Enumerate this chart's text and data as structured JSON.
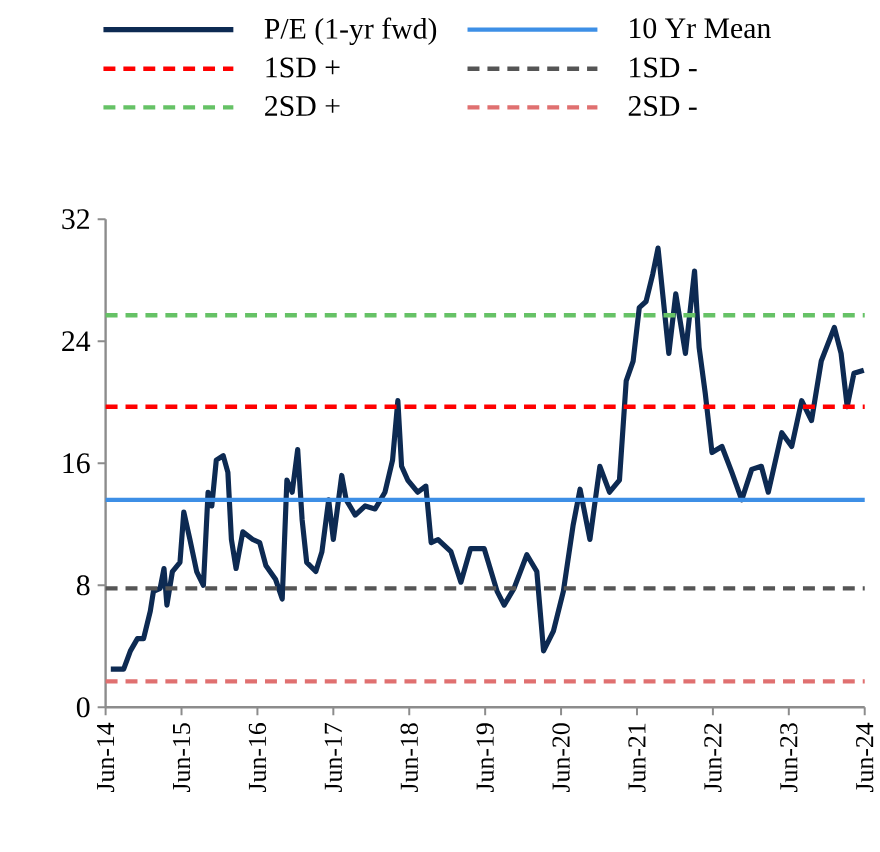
{
  "chart_data": {
    "type": "line",
    "xlim": [
      "2014-06-01",
      "2024-06-01"
    ],
    "xticks": [
      {
        "value": "2014-06-01",
        "label": "Jun-14"
      },
      {
        "value": "2015-06-01",
        "label": "Jun-15"
      },
      {
        "value": "2016-06-01",
        "label": "Jun-16"
      },
      {
        "value": "2017-06-01",
        "label": "Jun-17"
      },
      {
        "value": "2018-06-01",
        "label": "Jun-18"
      },
      {
        "value": "2019-06-01",
        "label": "Jun-19"
      },
      {
        "value": "2020-06-01",
        "label": "Jun-20"
      },
      {
        "value": "2021-06-01",
        "label": "Jun-21"
      },
      {
        "value": "2022-06-01",
        "label": "Jun-22"
      },
      {
        "value": "2023-06-01",
        "label": "Jun-23"
      },
      {
        "value": "2024-06-01",
        "label": "Jun-24"
      }
    ],
    "ylim": [
      0,
      32
    ],
    "yticks": [
      0,
      8,
      16,
      24,
      32
    ],
    "grid": false,
    "legend": "top",
    "marker": "none",
    "series": [
      {
        "name": "P/E (1-yr fwd)",
        "color": "#0d2a52",
        "line_style": "solid",
        "x": [
          "2014-06-26",
          "2014-08-27",
          "2014-09-29",
          "2014-11-02",
          "2014-12-01",
          "2015-01-03",
          "2015-01-18",
          "2015-02-20",
          "2015-03-08",
          "2015-03-22",
          "2015-04-18",
          "2015-05-24",
          "2015-06-12",
          "2015-07-11",
          "2015-08-13",
          "2015-09-15",
          "2015-10-07",
          "2015-10-25",
          "2015-11-16",
          "2015-12-19",
          "2016-01-11",
          "2016-01-28",
          "2016-02-20",
          "2016-03-22",
          "2016-05-09",
          "2016-06-12",
          "2016-07-11",
          "2016-08-27",
          "2016-09-29",
          "2016-10-21",
          "2016-11-16",
          "2016-12-12",
          "2017-01-03",
          "2017-01-25",
          "2017-03-08",
          "2017-04-07",
          "2017-05-09",
          "2017-06-01",
          "2017-07-11",
          "2017-08-02",
          "2017-09-15",
          "2017-11-02",
          "2017-12-19",
          "2018-02-06",
          "2018-03-12",
          "2018-04-07",
          "2018-04-25",
          "2018-05-24",
          "2018-07-11",
          "2018-08-20",
          "2018-09-15",
          "2018-10-18",
          "2018-12-19",
          "2019-02-06",
          "2019-03-22",
          "2019-05-27",
          "2019-07-28",
          "2019-09-01",
          "2019-10-18",
          "2019-12-19",
          "2020-02-06",
          "2020-03-08",
          "2020-04-25",
          "2020-06-12",
          "2020-07-28",
          "2020-09-01",
          "2020-10-18",
          "2020-12-05",
          "2021-01-21",
          "2021-03-08",
          "2021-04-10",
          "2021-05-13",
          "2021-06-12",
          "2021-07-14",
          "2021-08-16",
          "2021-09-11",
          "2021-10-03",
          "2021-11-02",
          "2021-12-05",
          "2022-01-21",
          "2022-03-04",
          "2022-03-26",
          "2022-04-25",
          "2022-05-27",
          "2022-07-14",
          "2022-09-01",
          "2022-10-18",
          "2022-12-05",
          "2023-01-21",
          "2023-02-24",
          "2023-04-28",
          "2023-06-15",
          "2023-08-02",
          "2023-09-19",
          "2023-11-05",
          "2024-01-07",
          "2024-02-09",
          "2024-03-08",
          "2024-04-10",
          "2024-05-27"
        ],
        "values": [
          2.5,
          2.5,
          3.7,
          4.5,
          4.5,
          6.3,
          7.6,
          7.8,
          9.1,
          6.7,
          8.9,
          9.5,
          12.8,
          11.0,
          8.9,
          8.0,
          14.1,
          13.2,
          16.2,
          16.5,
          15.4,
          11.0,
          9.1,
          11.5,
          11.0,
          10.8,
          9.3,
          8.4,
          7.1,
          14.9,
          14.1,
          16.9,
          12.3,
          9.5,
          8.9,
          10.2,
          13.6,
          11.0,
          15.2,
          13.6,
          12.6,
          13.2,
          13.0,
          14.1,
          16.2,
          20.1,
          15.8,
          14.9,
          14.1,
          14.5,
          10.8,
          11.0,
          10.2,
          8.2,
          10.4,
          10.4,
          7.6,
          6.7,
          7.8,
          10.0,
          8.9,
          3.7,
          5.0,
          7.6,
          11.9,
          14.3,
          11.0,
          15.8,
          14.1,
          14.9,
          21.4,
          22.7,
          26.2,
          26.6,
          28.4,
          30.1,
          27.1,
          23.2,
          27.1,
          23.2,
          28.6,
          23.6,
          20.6,
          16.7,
          17.1,
          15.4,
          13.6,
          15.6,
          15.8,
          14.1,
          18.0,
          17.1,
          20.1,
          18.8,
          22.7,
          24.9,
          23.2,
          19.7,
          21.9,
          22.1
        ]
      },
      {
        "name": "10 Yr Mean",
        "color": "#3d8fe6",
        "line_style": "solid",
        "x": [
          "2014-06-01",
          "2024-06-01"
        ],
        "values": [
          13.6,
          13.6
        ]
      },
      {
        "name": "1SD +",
        "color": "#ff0000",
        "line_style": "dashed",
        "x": [
          "2014-06-01",
          "2024-06-01"
        ],
        "values": [
          19.7,
          19.7
        ]
      },
      {
        "name": "1SD -",
        "color": "#555555",
        "line_style": "dashed",
        "x": [
          "2014-06-01",
          "2024-06-01"
        ],
        "values": [
          7.8,
          7.8
        ]
      },
      {
        "name": "2SD +",
        "color": "#66c266",
        "line_style": "dashed",
        "x": [
          "2014-06-01",
          "2024-06-01"
        ],
        "values": [
          25.7,
          25.7
        ]
      },
      {
        "name": "2SD -",
        "color": "#e07070",
        "line_style": "dashed",
        "x": [
          "2014-06-01",
          "2024-06-01"
        ],
        "values": [
          1.7,
          1.7
        ]
      }
    ]
  }
}
